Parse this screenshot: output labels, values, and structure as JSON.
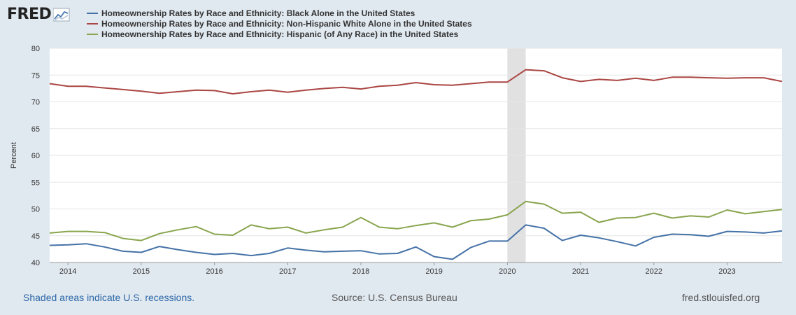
{
  "header": {
    "logo_text": "FRED",
    "logo_icon": "fred-chart-icon"
  },
  "footer": {
    "recession_note": "Shaded areas indicate U.S. recessions.",
    "source": "Source: U.S. Census Bureau",
    "url": "fred.stlouisfed.org"
  },
  "chart_data": {
    "type": "line",
    "ylabel": "Percent",
    "xlabel": "",
    "ylim": [
      40,
      80
    ],
    "yticks": [
      40,
      45,
      50,
      55,
      60,
      65,
      70,
      75,
      80
    ],
    "xlim": [
      2013.75,
      2023.75
    ],
    "xticks": [
      "2014",
      "2015",
      "2016",
      "2017",
      "2018",
      "2019",
      "2020",
      "2021",
      "2022",
      "2023"
    ],
    "grid": true,
    "legend": "top",
    "recession": [
      2020.0,
      2020.25
    ],
    "x": [
      "2013-Q4",
      "2014-Q1",
      "2014-Q2",
      "2014-Q3",
      "2014-Q4",
      "2015-Q1",
      "2015-Q2",
      "2015-Q3",
      "2015-Q4",
      "2016-Q1",
      "2016-Q2",
      "2016-Q3",
      "2016-Q4",
      "2017-Q1",
      "2017-Q2",
      "2017-Q3",
      "2017-Q4",
      "2018-Q1",
      "2018-Q2",
      "2018-Q3",
      "2018-Q4",
      "2019-Q1",
      "2019-Q2",
      "2019-Q3",
      "2019-Q4",
      "2020-Q1",
      "2020-Q2",
      "2020-Q3",
      "2020-Q4",
      "2021-Q1",
      "2021-Q2",
      "2021-Q3",
      "2021-Q4",
      "2022-Q1",
      "2022-Q2",
      "2022-Q3",
      "2022-Q4",
      "2023-Q1",
      "2023-Q2",
      "2023-Q3",
      "2023-Q4"
    ],
    "series": [
      {
        "name": "Homeownership Rates by Race and Ethnicity: Black Alone in the United States",
        "color": "#4572a7",
        "values": [
          43.2,
          43.3,
          43.5,
          42.9,
          42.1,
          41.9,
          43.0,
          42.4,
          41.9,
          41.5,
          41.7,
          41.3,
          41.7,
          42.7,
          42.3,
          42.0,
          42.1,
          42.2,
          41.6,
          41.7,
          42.9,
          41.1,
          40.6,
          42.8,
          44.0,
          44.0,
          47.0,
          46.4,
          44.1,
          45.1,
          44.6,
          43.9,
          43.1,
          44.7,
          45.3,
          45.2,
          44.9,
          45.8,
          45.7,
          45.5,
          45.9
        ]
      },
      {
        "name": "Homeownership Rates by Race and Ethnicity: Non-Hispanic White Alone in the United States",
        "color": "#aa4643",
        "values": [
          73.4,
          72.9,
          72.9,
          72.6,
          72.3,
          72.0,
          71.6,
          71.9,
          72.2,
          72.1,
          71.5,
          71.9,
          72.2,
          71.8,
          72.2,
          72.5,
          72.7,
          72.4,
          72.9,
          73.1,
          73.6,
          73.2,
          73.1,
          73.4,
          73.7,
          73.7,
          76.0,
          75.8,
          74.5,
          73.8,
          74.2,
          74.0,
          74.4,
          74.0,
          74.6,
          74.6,
          74.5,
          74.4,
          74.5,
          74.5,
          73.8
        ]
      },
      {
        "name": "Homeownership Rates by Race and Ethnicity: Hispanic (of Any Race) in the United States",
        "color": "#89a54e",
        "values": [
          45.5,
          45.8,
          45.8,
          45.6,
          44.5,
          44.1,
          45.4,
          46.1,
          46.7,
          45.3,
          45.1,
          47.0,
          46.3,
          46.6,
          45.5,
          46.1,
          46.6,
          48.4,
          46.6,
          46.3,
          46.9,
          47.4,
          46.6,
          47.8,
          48.1,
          48.9,
          51.4,
          50.9,
          49.2,
          49.4,
          47.5,
          48.3,
          48.4,
          49.2,
          48.3,
          48.7,
          48.5,
          49.8,
          49.1,
          49.5,
          49.9
        ]
      }
    ]
  }
}
